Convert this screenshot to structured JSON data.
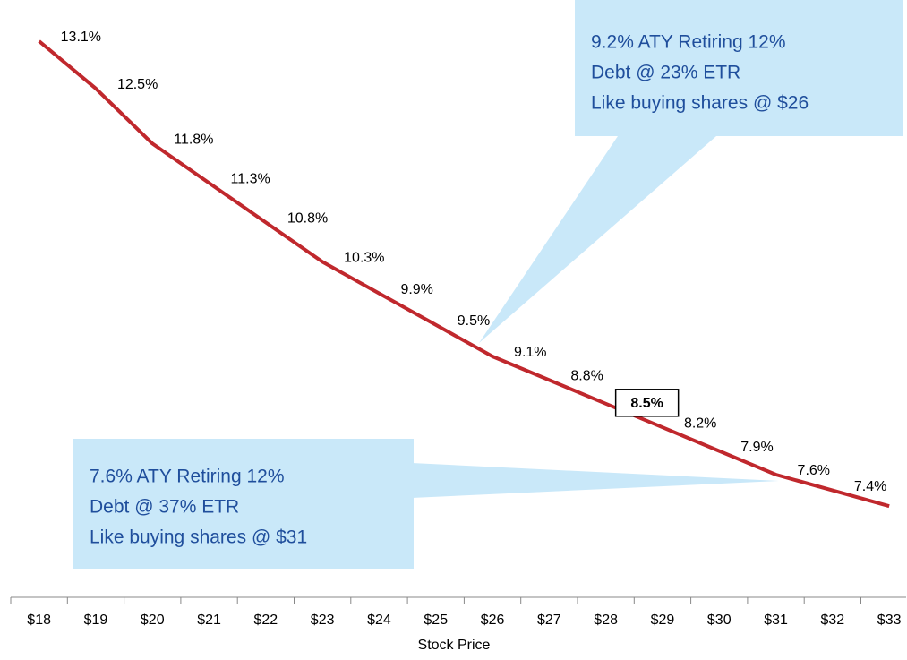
{
  "chart_data": {
    "type": "line",
    "x_label": "Stock Price",
    "categories": [
      "$18",
      "$19",
      "$20",
      "$21",
      "$22",
      "$23",
      "$24",
      "$25",
      "$26",
      "$27",
      "$28",
      "$29",
      "$30",
      "$31",
      "$32",
      "$33"
    ],
    "series": [
      {
        "name": null,
        "color": "#c0282d",
        "values": [
          13.1,
          12.5,
          11.8,
          11.3,
          10.8,
          10.3,
          9.9,
          9.5,
          9.1,
          8.8,
          8.5,
          8.2,
          7.9,
          7.6,
          7.4,
          7.2
        ],
        "value_labels": [
          "13.1%",
          "12.5%",
          "11.8%",
          "11.3%",
          "10.8%",
          "10.3%",
          "9.9%",
          "9.5%",
          "9.1%",
          "8.8%",
          "8.5%",
          "8.2%",
          "7.9%",
          "7.6%",
          "7.4%",
          null
        ]
      }
    ],
    "highlighted_label": 10,
    "ylim": [
      5.5,
      13.6
    ],
    "annotations": [
      {
        "lines": [
          "9.2% ATY Retiring 12%",
          "Debt @ 23% ETR",
          "Like buying shares @ $26"
        ]
      },
      {
        "lines": [
          "7.6% ATY Retiring 12%",
          "Debt @ 37% ETR",
          "Like buying shares @ $31"
        ]
      }
    ]
  }
}
